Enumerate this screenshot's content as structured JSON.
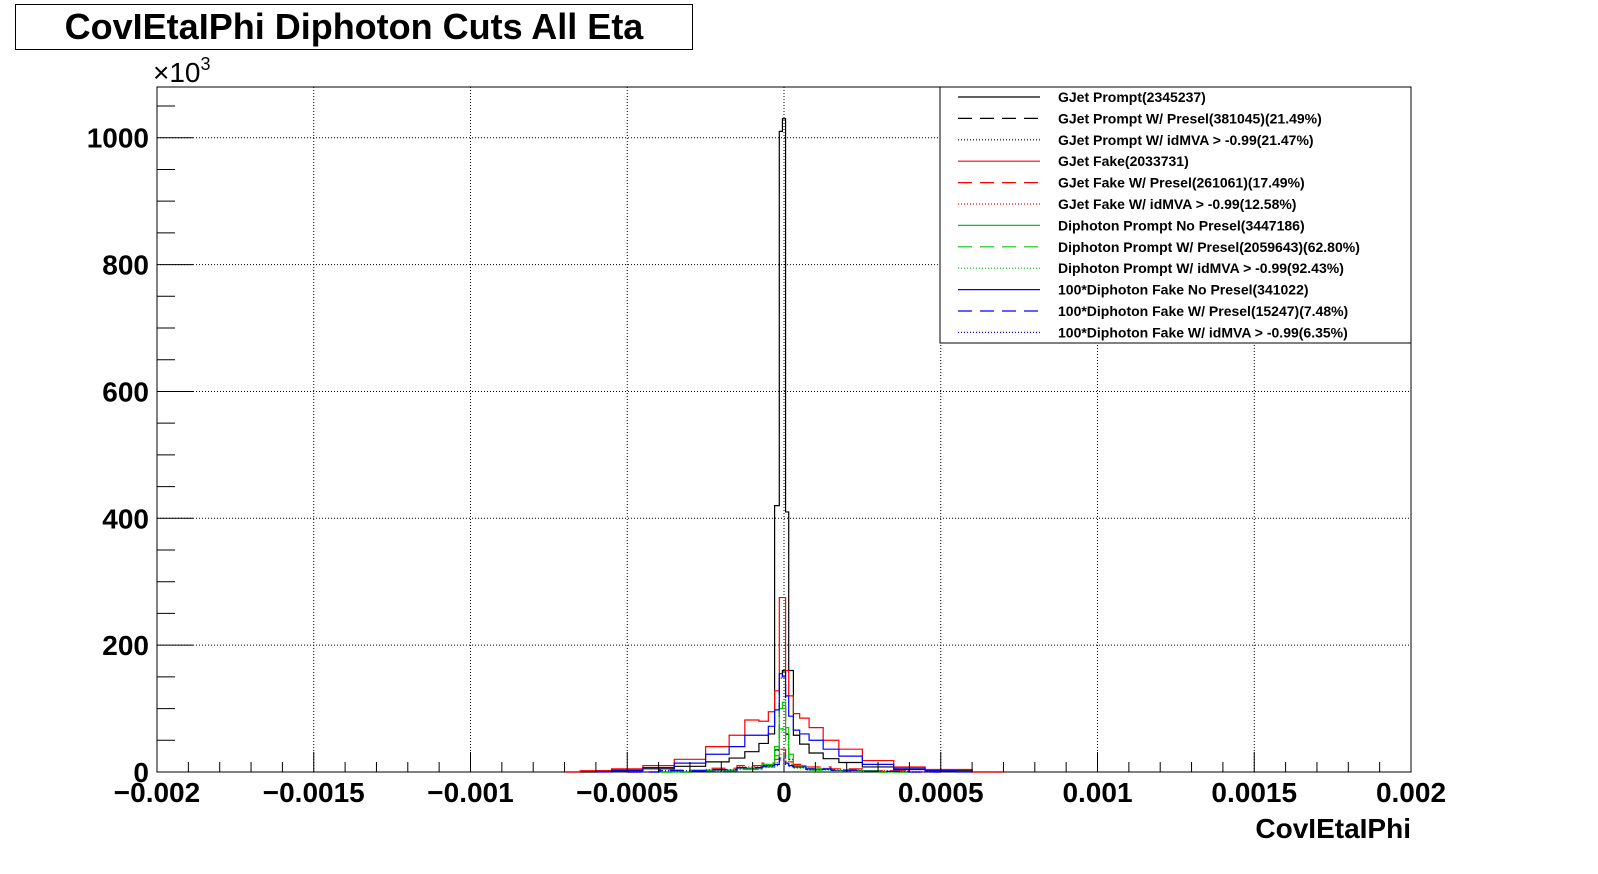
{
  "chart_data": {
    "type": "line",
    "title": "CovIEtaIPhi Diphoton Cuts All Eta",
    "xlabel": "CovIEtaIPhi",
    "ylabel": "",
    "y_exponent_base": "×10",
    "y_exponent_power": "3",
    "xlim": [
      -0.002,
      0.002
    ],
    "ylim": [
      0,
      1080
    ],
    "x_tick_values": [
      -0.002,
      -0.0015,
      -0.001,
      -0.0005,
      0,
      0.0005,
      0.001,
      0.0015,
      0.002
    ],
    "x_tick_labels": [
      "−0.002",
      "−0.0015",
      "−0.001",
      "−0.0005",
      "0",
      "0.0005",
      "0.001",
      "0.0015",
      "0.002"
    ],
    "y_tick_values": [
      0,
      200,
      400,
      600,
      800,
      1000
    ],
    "y_tick_labels": [
      "0",
      "200",
      "400",
      "600",
      "800",
      "1000"
    ],
    "grid": true,
    "legend_position": "top-right",
    "series": [
      {
        "name": "GJet Prompt(2345237)",
        "color": "#000000",
        "dash": "solid",
        "points": [
          [
            -0.0007,
            0
          ],
          [
            -0.0005,
            2
          ],
          [
            -0.0004,
            5
          ],
          [
            -0.0003,
            9
          ],
          [
            -0.0002,
            16
          ],
          [
            -0.00015,
            22
          ],
          [
            -0.0001,
            32
          ],
          [
            -6e-05,
            45
          ],
          [
            -4e-05,
            60
          ],
          [
            -2e-05,
            420
          ],
          [
            -1e-05,
            1010
          ],
          [
            0.0,
            1030
          ],
          [
            1e-05,
            410
          ],
          [
            2e-05,
            160
          ],
          [
            4e-05,
            58
          ],
          [
            6e-05,
            44
          ],
          [
            0.0001,
            30
          ],
          [
            0.00015,
            21
          ],
          [
            0.0002,
            15
          ],
          [
            0.0003,
            8
          ],
          [
            0.0004,
            4
          ],
          [
            0.0005,
            2
          ],
          [
            0.0007,
            0
          ]
        ]
      },
      {
        "name": "GJet Prompt W/ Presel(381045)(21.49%)",
        "color": "#000000",
        "dash": "long",
        "points": [
          [
            -0.0004,
            0
          ],
          [
            -0.0002,
            2
          ],
          [
            -0.0001,
            5
          ],
          [
            -4e-05,
            10
          ],
          [
            -2e-05,
            35
          ],
          [
            -1e-05,
            150
          ],
          [
            0.0,
            160
          ],
          [
            1e-05,
            60
          ],
          [
            2e-05,
            20
          ],
          [
            4e-05,
            8
          ],
          [
            0.0001,
            4
          ],
          [
            0.0002,
            2
          ],
          [
            0.0004,
            0
          ]
        ]
      },
      {
        "name": "GJet Prompt W/ idMVA > -0.99(21.47%)",
        "color": "#000000",
        "dash": "dotted",
        "points": [
          [
            -0.0004,
            0
          ],
          [
            -0.0002,
            2
          ],
          [
            -0.0001,
            5
          ],
          [
            -4e-05,
            10
          ],
          [
            -2e-05,
            34
          ],
          [
            -1e-05,
            148
          ],
          [
            0.0,
            158
          ],
          [
            1e-05,
            59
          ],
          [
            2e-05,
            20
          ],
          [
            4e-05,
            8
          ],
          [
            0.0001,
            4
          ],
          [
            0.0002,
            2
          ],
          [
            0.0004,
            0
          ]
        ]
      },
      {
        "name": "GJet Fake(2033731)",
        "color": "#ff0000",
        "dash": "solid",
        "points": [
          [
            -0.0007,
            0
          ],
          [
            -0.0006,
            2
          ],
          [
            -0.0005,
            5
          ],
          [
            -0.0004,
            10
          ],
          [
            -0.0003,
            20
          ],
          [
            -0.0002,
            40
          ],
          [
            -0.00015,
            58
          ],
          [
            -0.0001,
            82
          ],
          [
            -6e-05,
            80
          ],
          [
            -4e-05,
            95
          ],
          [
            -2e-05,
            128
          ],
          [
            -1e-05,
            275
          ],
          [
            0.0,
            275
          ],
          [
            1e-05,
            160
          ],
          [
            2e-05,
            120
          ],
          [
            4e-05,
            92
          ],
          [
            6e-05,
            85
          ],
          [
            0.0001,
            70
          ],
          [
            0.00015,
            50
          ],
          [
            0.0002,
            36
          ],
          [
            0.0003,
            18
          ],
          [
            0.0004,
            8
          ],
          [
            0.0005,
            4
          ],
          [
            0.0007,
            0
          ]
        ]
      },
      {
        "name": "GJet Fake W/ Presel(261061)(17.49%)",
        "color": "#ff0000",
        "dash": "long",
        "points": [
          [
            -0.0005,
            0
          ],
          [
            -0.0003,
            3
          ],
          [
            -0.0002,
            6
          ],
          [
            -0.0001,
            10
          ],
          [
            -4e-05,
            14
          ],
          [
            -2e-05,
            20
          ],
          [
            -1e-05,
            36
          ],
          [
            0.0,
            36
          ],
          [
            1e-05,
            22
          ],
          [
            2e-05,
            16
          ],
          [
            4e-05,
            12
          ],
          [
            0.0001,
            8
          ],
          [
            0.0002,
            5
          ],
          [
            0.0003,
            2
          ],
          [
            0.0005,
            0
          ]
        ]
      },
      {
        "name": "GJet Fake W/ idMVA > -0.99(12.58%)",
        "color": "#ff0000",
        "dash": "dotted",
        "points": [
          [
            -0.0005,
            0
          ],
          [
            -0.0003,
            2
          ],
          [
            -0.0002,
            4
          ],
          [
            -0.0001,
            8
          ],
          [
            -4e-05,
            10
          ],
          [
            -2e-05,
            15
          ],
          [
            -1e-05,
            28
          ],
          [
            0.0,
            28
          ],
          [
            1e-05,
            17
          ],
          [
            2e-05,
            12
          ],
          [
            4e-05,
            9
          ],
          [
            0.0001,
            6
          ],
          [
            0.0002,
            4
          ],
          [
            0.0003,
            2
          ],
          [
            0.0005,
            0
          ]
        ]
      },
      {
        "name": "Diphoton Prompt No Presel(3447186)",
        "color": "#00cc00",
        "dash": "solid",
        "points": [
          [
            -0.0004,
            0
          ],
          [
            -0.0002,
            3
          ],
          [
            -0.0001,
            6
          ],
          [
            -4e-05,
            12
          ],
          [
            -2e-05,
            40
          ],
          [
            -1e-05,
            100
          ],
          [
            0.0,
            110
          ],
          [
            1e-05,
            70
          ],
          [
            2e-05,
            28
          ],
          [
            4e-05,
            10
          ],
          [
            0.0001,
            5
          ],
          [
            0.0002,
            2
          ],
          [
            0.0004,
            0
          ]
        ]
      },
      {
        "name": "Diphoton Prompt W/ Presel(2059643)(62.80%)",
        "color": "#00cc00",
        "dash": "long",
        "points": [
          [
            -0.0004,
            0
          ],
          [
            -0.0002,
            2
          ],
          [
            -0.0001,
            4
          ],
          [
            -4e-05,
            8
          ],
          [
            -2e-05,
            26
          ],
          [
            -1e-05,
            68
          ],
          [
            0.0,
            74
          ],
          [
            1e-05,
            46
          ],
          [
            2e-05,
            18
          ],
          [
            4e-05,
            7
          ],
          [
            0.0001,
            3
          ],
          [
            0.0002,
            1
          ],
          [
            0.0004,
            0
          ]
        ]
      },
      {
        "name": "Diphoton Prompt W/ idMVA > -0.99(92.43%)",
        "color": "#00cc00",
        "dash": "dotted",
        "points": [
          [
            -0.0004,
            0
          ],
          [
            -0.0002,
            2
          ],
          [
            -0.0001,
            4
          ],
          [
            -4e-05,
            7
          ],
          [
            -2e-05,
            24
          ],
          [
            -1e-05,
            63
          ],
          [
            0.0,
            69
          ],
          [
            1e-05,
            43
          ],
          [
            2e-05,
            17
          ],
          [
            4e-05,
            6
          ],
          [
            0.0001,
            3
          ],
          [
            0.0002,
            1
          ],
          [
            0.0004,
            0
          ]
        ]
      },
      {
        "name": "100*Diphoton Fake No Presel(341022)",
        "color": "#0000ff",
        "dash": "solid",
        "points": [
          [
            -0.0006,
            0
          ],
          [
            -0.0005,
            3
          ],
          [
            -0.0004,
            7
          ],
          [
            -0.0003,
            14
          ],
          [
            -0.0002,
            28
          ],
          [
            -0.00015,
            40
          ],
          [
            -0.0001,
            58
          ],
          [
            -6e-05,
            58
          ],
          [
            -4e-05,
            72
          ],
          [
            -2e-05,
            98
          ],
          [
            -1e-05,
            155
          ],
          [
            0.0,
            150
          ],
          [
            1e-05,
            120
          ],
          [
            2e-05,
            88
          ],
          [
            4e-05,
            66
          ],
          [
            6e-05,
            60
          ],
          [
            0.0001,
            50
          ],
          [
            0.00015,
            36
          ],
          [
            0.0002,
            25
          ],
          [
            0.0003,
            12
          ],
          [
            0.0004,
            6
          ],
          [
            0.0005,
            2
          ],
          [
            0.0006,
            0
          ]
        ]
      },
      {
        "name": "100*Diphoton Fake W/ Presel(15247)(7.48%)",
        "color": "#0000ff",
        "dash": "long",
        "points": [
          [
            -0.0005,
            0
          ],
          [
            -0.0003,
            2
          ],
          [
            -0.0002,
            4
          ],
          [
            -0.0001,
            7
          ],
          [
            -4e-05,
            9
          ],
          [
            -2e-05,
            12
          ],
          [
            -1e-05,
            22
          ],
          [
            0.0,
            22
          ],
          [
            1e-05,
            14
          ],
          [
            2e-05,
            10
          ],
          [
            4e-05,
            8
          ],
          [
            0.0001,
            5
          ],
          [
            0.0002,
            3
          ],
          [
            0.0003,
            1
          ],
          [
            0.0005,
            0
          ]
        ]
      },
      {
        "name": "100*Diphoton Fake W/ idMVA > -0.99(6.35%)",
        "color": "#0000ff",
        "dash": "dotted",
        "points": [
          [
            -0.0005,
            0
          ],
          [
            -0.0003,
            2
          ],
          [
            -0.0002,
            3
          ],
          [
            -0.0001,
            6
          ],
          [
            -4e-05,
            8
          ],
          [
            -2e-05,
            10
          ],
          [
            -1e-05,
            19
          ],
          [
            0.0,
            19
          ],
          [
            1e-05,
            12
          ],
          [
            2e-05,
            9
          ],
          [
            4e-05,
            7
          ],
          [
            0.0001,
            4
          ],
          [
            0.0002,
            2
          ],
          [
            0.0003,
            1
          ],
          [
            0.0005,
            0
          ]
        ]
      }
    ]
  }
}
